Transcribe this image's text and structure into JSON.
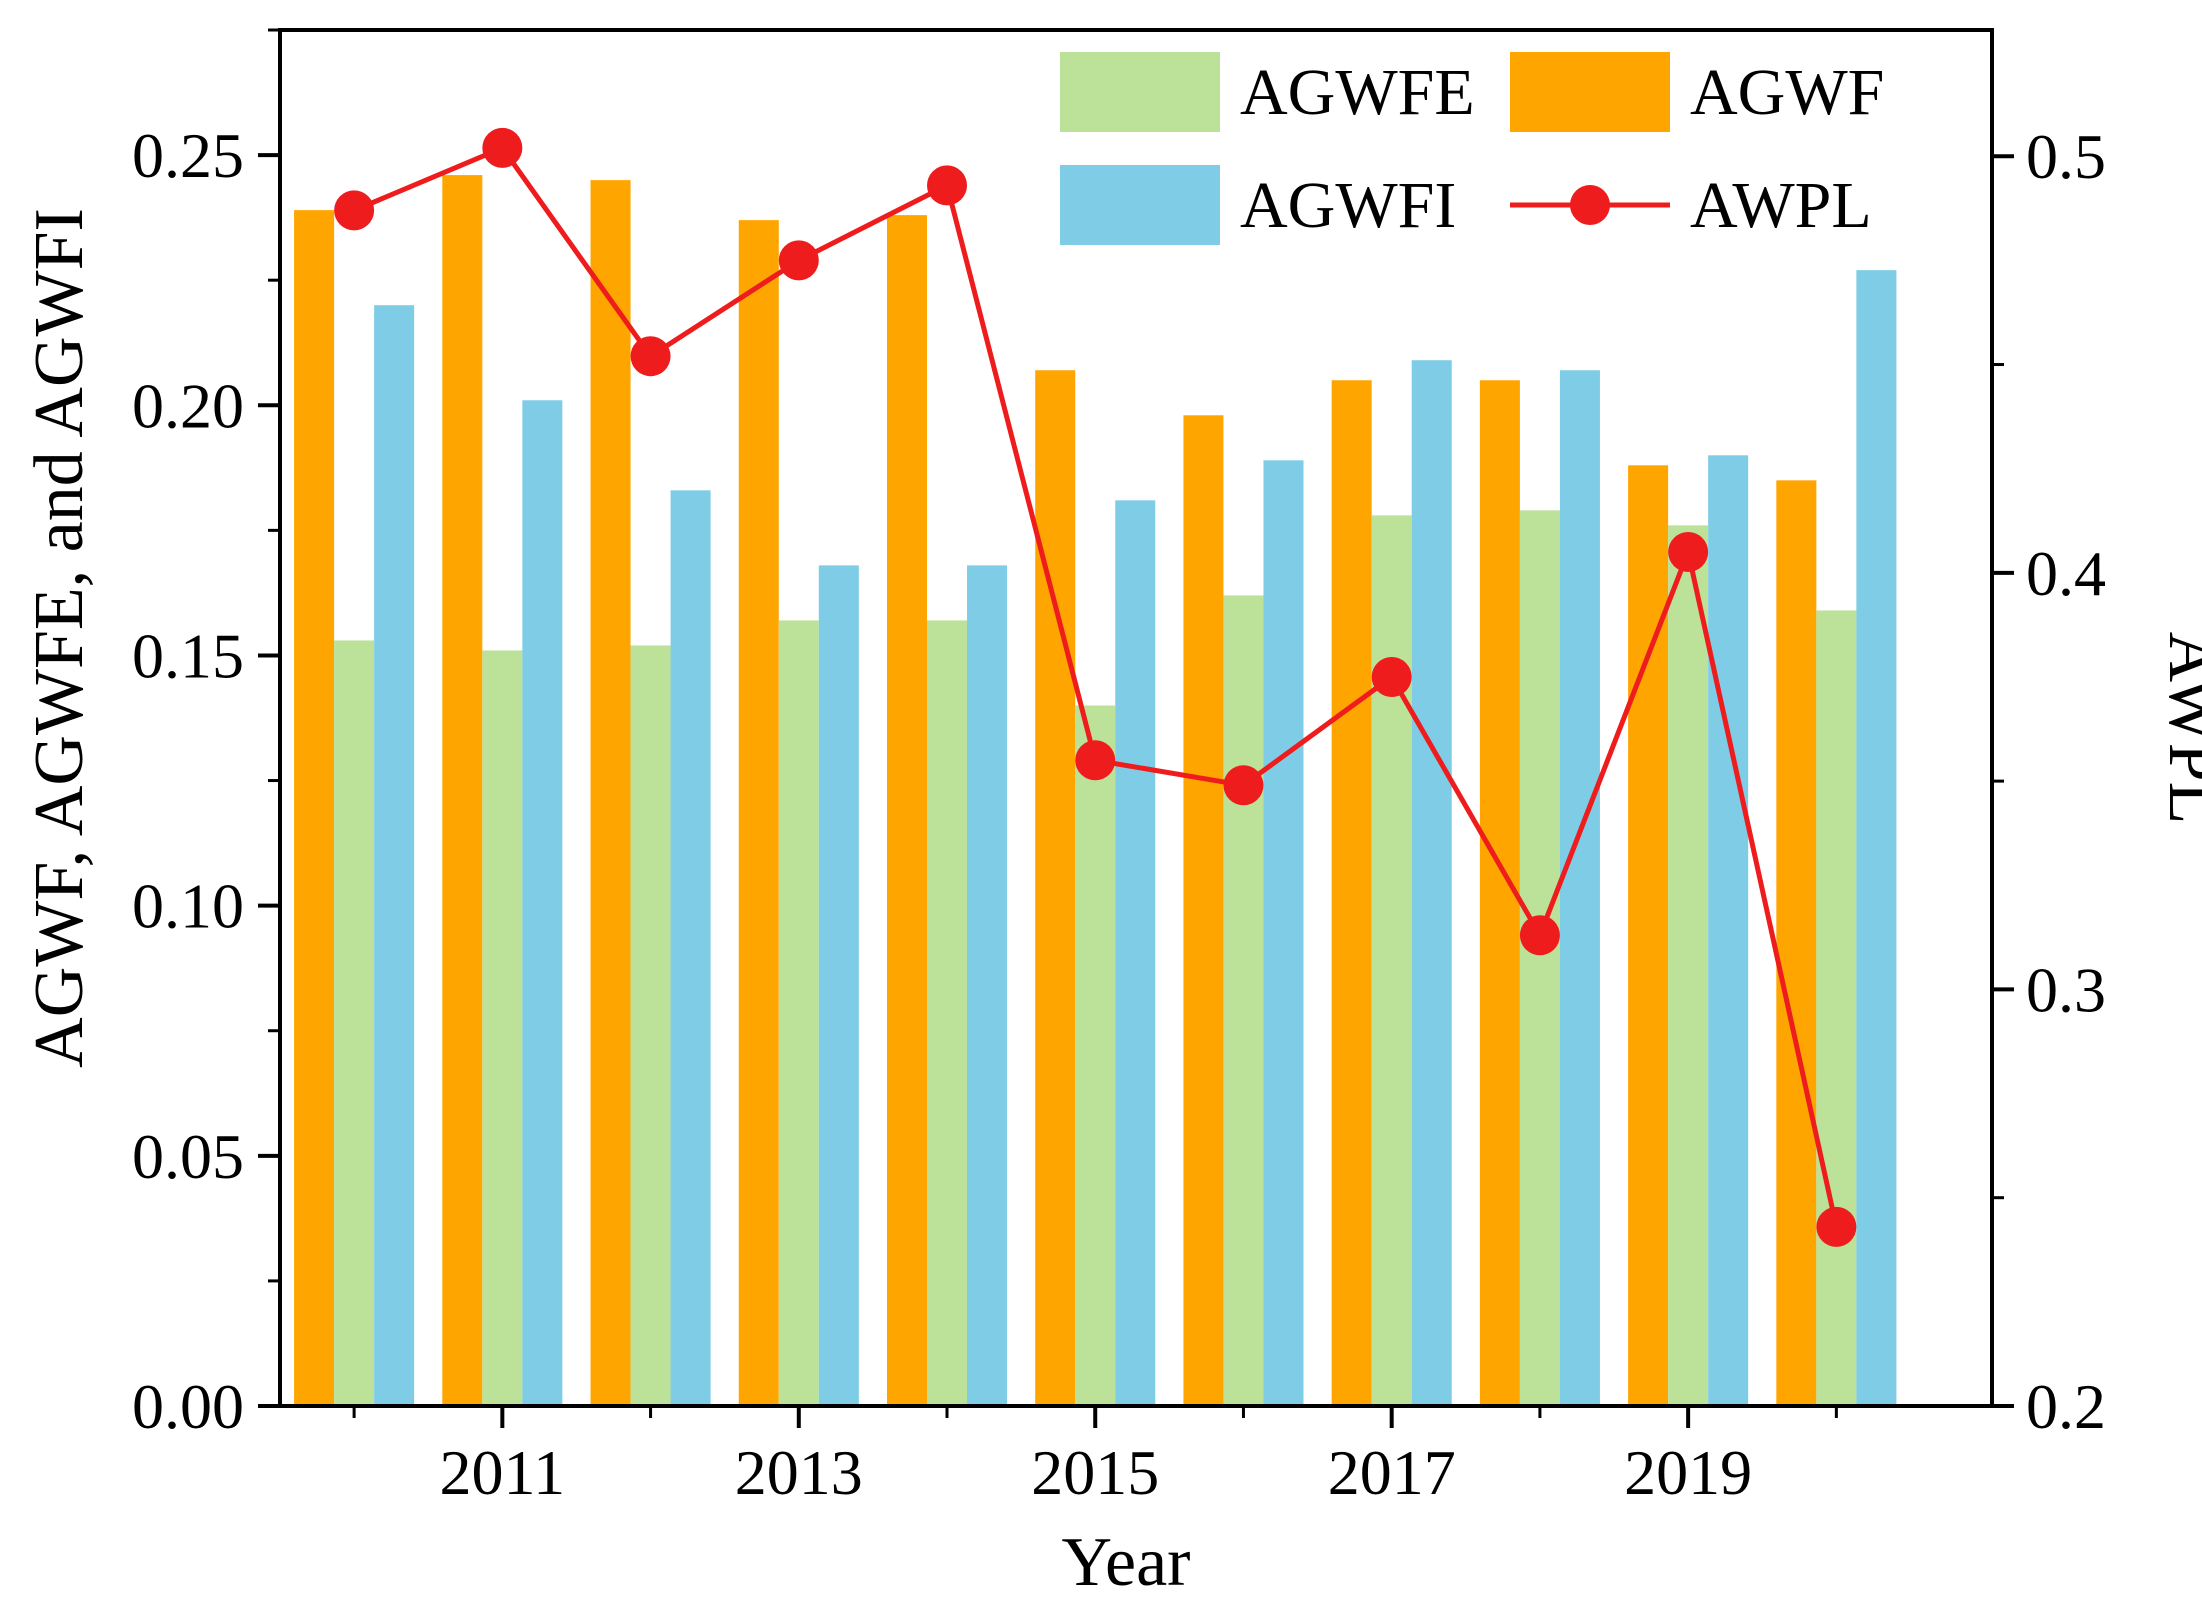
{
  "chart_data": {
    "type": "bar",
    "title": "",
    "xlabel": "Year",
    "ylabel": "AGWF, AGWFE, and AGWFI",
    "y2label": "AWPL",
    "categories": [
      "2010",
      "2011",
      "2012",
      "2013",
      "2014",
      "2015",
      "2016",
      "2017",
      "2018",
      "2019",
      "2020"
    ],
    "x_tick_labels": [
      "2011",
      "2013",
      "2015",
      "2017",
      "2019"
    ],
    "x_tick_values": [
      2011,
      2013,
      2015,
      2017,
      2019
    ],
    "ylim": [
      0,
      0.275
    ],
    "y_ticks": [
      0.0,
      0.05,
      0.1,
      0.15,
      0.2,
      0.25
    ],
    "y_tick_labels": [
      "0.00",
      "0.05",
      "0.10",
      "0.15",
      "0.20",
      "0.25"
    ],
    "y2lim": [
      0.2,
      0.5303
    ],
    "y2_ticks": [
      0.2,
      0.3,
      0.4,
      0.5
    ],
    "y2_tick_labels": [
      "0.2",
      "0.3",
      "0.4",
      "0.5"
    ],
    "legend_position": "top-right",
    "series": [
      {
        "name": "AGWF",
        "kind": "bar",
        "axis": "left",
        "color": "#FFA500",
        "values": [
          0.239,
          0.246,
          0.245,
          0.237,
          0.238,
          0.207,
          0.198,
          0.205,
          0.205,
          0.188,
          0.185
        ]
      },
      {
        "name": "AGWFE",
        "kind": "bar",
        "axis": "left",
        "color": "#BCE29A",
        "values": [
          0.153,
          0.151,
          0.152,
          0.157,
          0.157,
          0.14,
          0.162,
          0.178,
          0.179,
          0.176,
          0.159
        ]
      },
      {
        "name": "AGWFI",
        "kind": "bar",
        "axis": "left",
        "color": "#7ECCE6",
        "values": [
          0.22,
          0.201,
          0.183,
          0.168,
          0.168,
          0.181,
          0.189,
          0.209,
          0.207,
          0.19,
          0.227
        ]
      },
      {
        "name": "AWPL",
        "kind": "line",
        "axis": "right",
        "color": "#EE1C1C",
        "values": [
          0.487,
          0.502,
          0.452,
          0.475,
          0.493,
          0.355,
          0.349,
          0.375,
          0.313,
          0.405,
          0.243
        ]
      }
    ],
    "legend": [
      "AGWFE",
      "AGWF",
      "AGWFI",
      "AWPL"
    ]
  }
}
